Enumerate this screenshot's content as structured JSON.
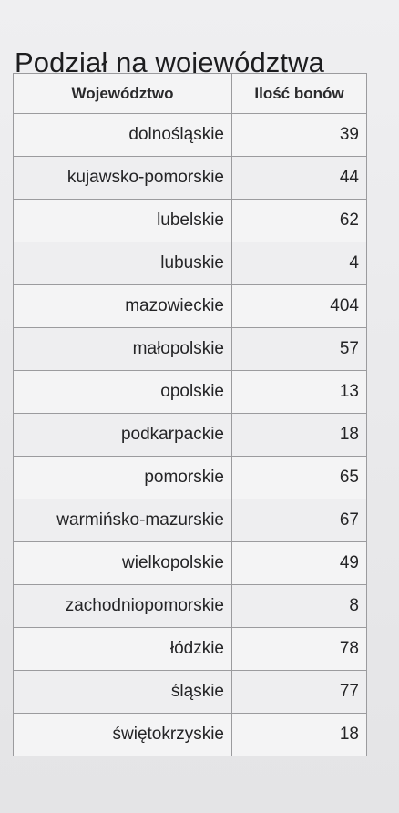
{
  "title": "Podział na województwa",
  "table": {
    "headers": [
      "Województwo",
      "Ilość bonów"
    ],
    "rows": [
      {
        "name": "dolnośląskie",
        "count": "39"
      },
      {
        "name": "kujawsko-pomorskie",
        "count": "44"
      },
      {
        "name": "lubelskie",
        "count": "62"
      },
      {
        "name": "lubuskie",
        "count": "4"
      },
      {
        "name": "mazowieckie",
        "count": "404"
      },
      {
        "name": "małopolskie",
        "count": "57"
      },
      {
        "name": "opolskie",
        "count": "13"
      },
      {
        "name": "podkarpackie",
        "count": "18"
      },
      {
        "name": "pomorskie",
        "count": "65"
      },
      {
        "name": "warmińsko-mazurskie",
        "count": "67"
      },
      {
        "name": "wielkopolskie",
        "count": "49"
      },
      {
        "name": "zachodniopomorskie",
        "count": "8"
      },
      {
        "name": "łódzkie",
        "count": "78"
      },
      {
        "name": "śląskie",
        "count": "77"
      },
      {
        "name": "świętokrzyskie",
        "count": "18"
      }
    ]
  }
}
